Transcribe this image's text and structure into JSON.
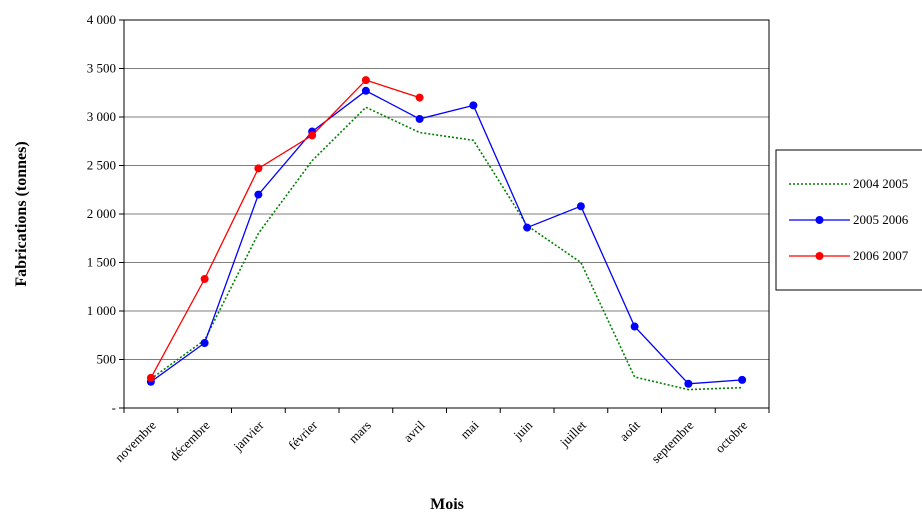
{
  "chart_data": {
    "type": "line",
    "title": "",
    "xlabel": "Mois",
    "ylabel": "Fabrications (tonnes)",
    "ylim": [
      0,
      4000
    ],
    "yticks": [
      0,
      500,
      1000,
      1500,
      2000,
      2500,
      3000,
      3500,
      4000
    ],
    "ytick_labels": [
      "-",
      "500",
      "1 000",
      "1 500",
      "2 000",
      "2 500",
      "3 000",
      "3 500",
      "4 000"
    ],
    "categories": [
      "novembre",
      "décembre",
      "janvier",
      "février",
      "mars",
      "avril",
      "mai",
      "juin",
      "juillet",
      "août",
      "septembre",
      "octobre"
    ],
    "grid": "horizontal",
    "legend_position": "right",
    "series": [
      {
        "name": "2004 2005",
        "color": "#008000",
        "style": "dotted",
        "marker": "none",
        "values": [
          300,
          700,
          1800,
          2550,
          3100,
          2840,
          2760,
          1880,
          1500,
          320,
          190,
          210
        ]
      },
      {
        "name": "2005 2006",
        "color": "#0000FF",
        "style": "solid",
        "marker": "circle",
        "values": [
          270,
          670,
          2200,
          2850,
          3270,
          2980,
          3120,
          1860,
          2080,
          840,
          250,
          290
        ]
      },
      {
        "name": "2006 2007",
        "color": "#FF0000",
        "style": "solid",
        "marker": "circle",
        "values": [
          310,
          1330,
          2470,
          2810,
          3380,
          3200,
          null,
          null,
          null,
          null,
          null,
          null
        ]
      }
    ]
  }
}
